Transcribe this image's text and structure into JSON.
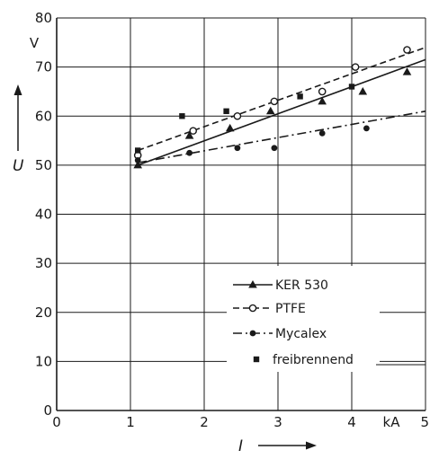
{
  "chart_data": {
    "type": "scatter",
    "xlabel": "I",
    "ylabel": "U",
    "x_unit": "kA",
    "y_unit": "V",
    "xlim": [
      0,
      5
    ],
    "ylim": [
      0,
      80
    ],
    "x_ticks": [
      "0",
      "1",
      "2",
      "3",
      "4",
      "5"
    ],
    "y_ticks": [
      "0",
      "10",
      "20",
      "30",
      "40",
      "50",
      "60",
      "70",
      "80"
    ],
    "grid": true,
    "legend_position": "lower-right",
    "series": [
      {
        "name": "KER 530",
        "marker": "triangle",
        "line_style": "solid",
        "points": [
          [
            1.1,
            50
          ],
          [
            1.8,
            56
          ],
          [
            2.35,
            57.5
          ],
          [
            2.9,
            61
          ],
          [
            3.6,
            63
          ],
          [
            4.15,
            65
          ],
          [
            4.75,
            69
          ]
        ],
        "fit": [
          [
            1.1,
            50
          ],
          [
            5.0,
            71.5
          ]
        ]
      },
      {
        "name": "PTFE",
        "marker": "open-circle",
        "line_style": "dashed",
        "points": [
          [
            1.1,
            52
          ],
          [
            1.85,
            57
          ],
          [
            2.45,
            60
          ],
          [
            2.95,
            63
          ],
          [
            3.6,
            65
          ],
          [
            4.05,
            70
          ],
          [
            4.75,
            73.5
          ]
        ],
        "fit": [
          [
            1.1,
            53
          ],
          [
            5.0,
            74
          ]
        ]
      },
      {
        "name": "Mycalex",
        "marker": "filled-circle",
        "line_style": "dash-dot",
        "points": [
          [
            1.1,
            51
          ],
          [
            1.8,
            52.5
          ],
          [
            2.45,
            53.5
          ],
          [
            2.95,
            53.5
          ],
          [
            3.6,
            56.5
          ],
          [
            4.2,
            57.5
          ]
        ],
        "fit": [
          [
            1.1,
            50.5
          ],
          [
            5.0,
            61
          ]
        ]
      },
      {
        "name": "freibrennend",
        "marker": "filled-square",
        "line_style": "none",
        "points": [
          [
            1.1,
            53
          ],
          [
            1.7,
            60
          ],
          [
            2.3,
            61
          ],
          [
            3.3,
            64
          ],
          [
            4.0,
            66
          ]
        ]
      }
    ]
  }
}
